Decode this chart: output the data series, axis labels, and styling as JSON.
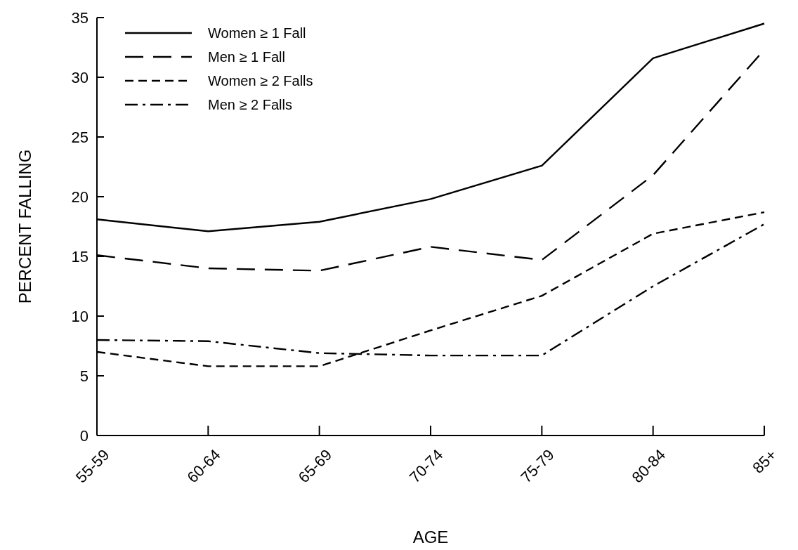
{
  "chart_data": {
    "type": "line",
    "xlabel": "AGE",
    "ylabel": "PERCENT FALLING",
    "categories": [
      "55-59",
      "60-64",
      "65-69",
      "70-74",
      "75-79",
      "80-84",
      "85+"
    ],
    "ylim": [
      0,
      35
    ],
    "yticks": [
      0,
      5,
      10,
      15,
      20,
      25,
      30,
      35
    ],
    "grid": false,
    "legend": "top left",
    "series": [
      {
        "name": "Women ≥ 1 Fall",
        "color": "#000000",
        "line_style": "solid",
        "values": [
          18.1,
          17.1,
          17.9,
          19.8,
          22.6,
          31.6,
          34.5
        ]
      },
      {
        "name": "Men ≥ 1 Fall",
        "color": "#000000",
        "line_style": "longdash",
        "values": [
          15.1,
          14.0,
          13.8,
          15.8,
          14.7,
          21.8,
          32.3
        ]
      },
      {
        "name": "Women ≥ 2 Falls",
        "color": "#000000",
        "line_style": "dashed",
        "values": [
          7.0,
          5.8,
          5.8,
          8.8,
          11.7,
          16.9,
          18.7
        ]
      },
      {
        "name": "Men ≥ 2 Falls",
        "color": "#000000",
        "line_style": "dashdot",
        "values": [
          8.0,
          7.9,
          6.9,
          6.7,
          6.7,
          12.5,
          17.7
        ]
      }
    ]
  }
}
